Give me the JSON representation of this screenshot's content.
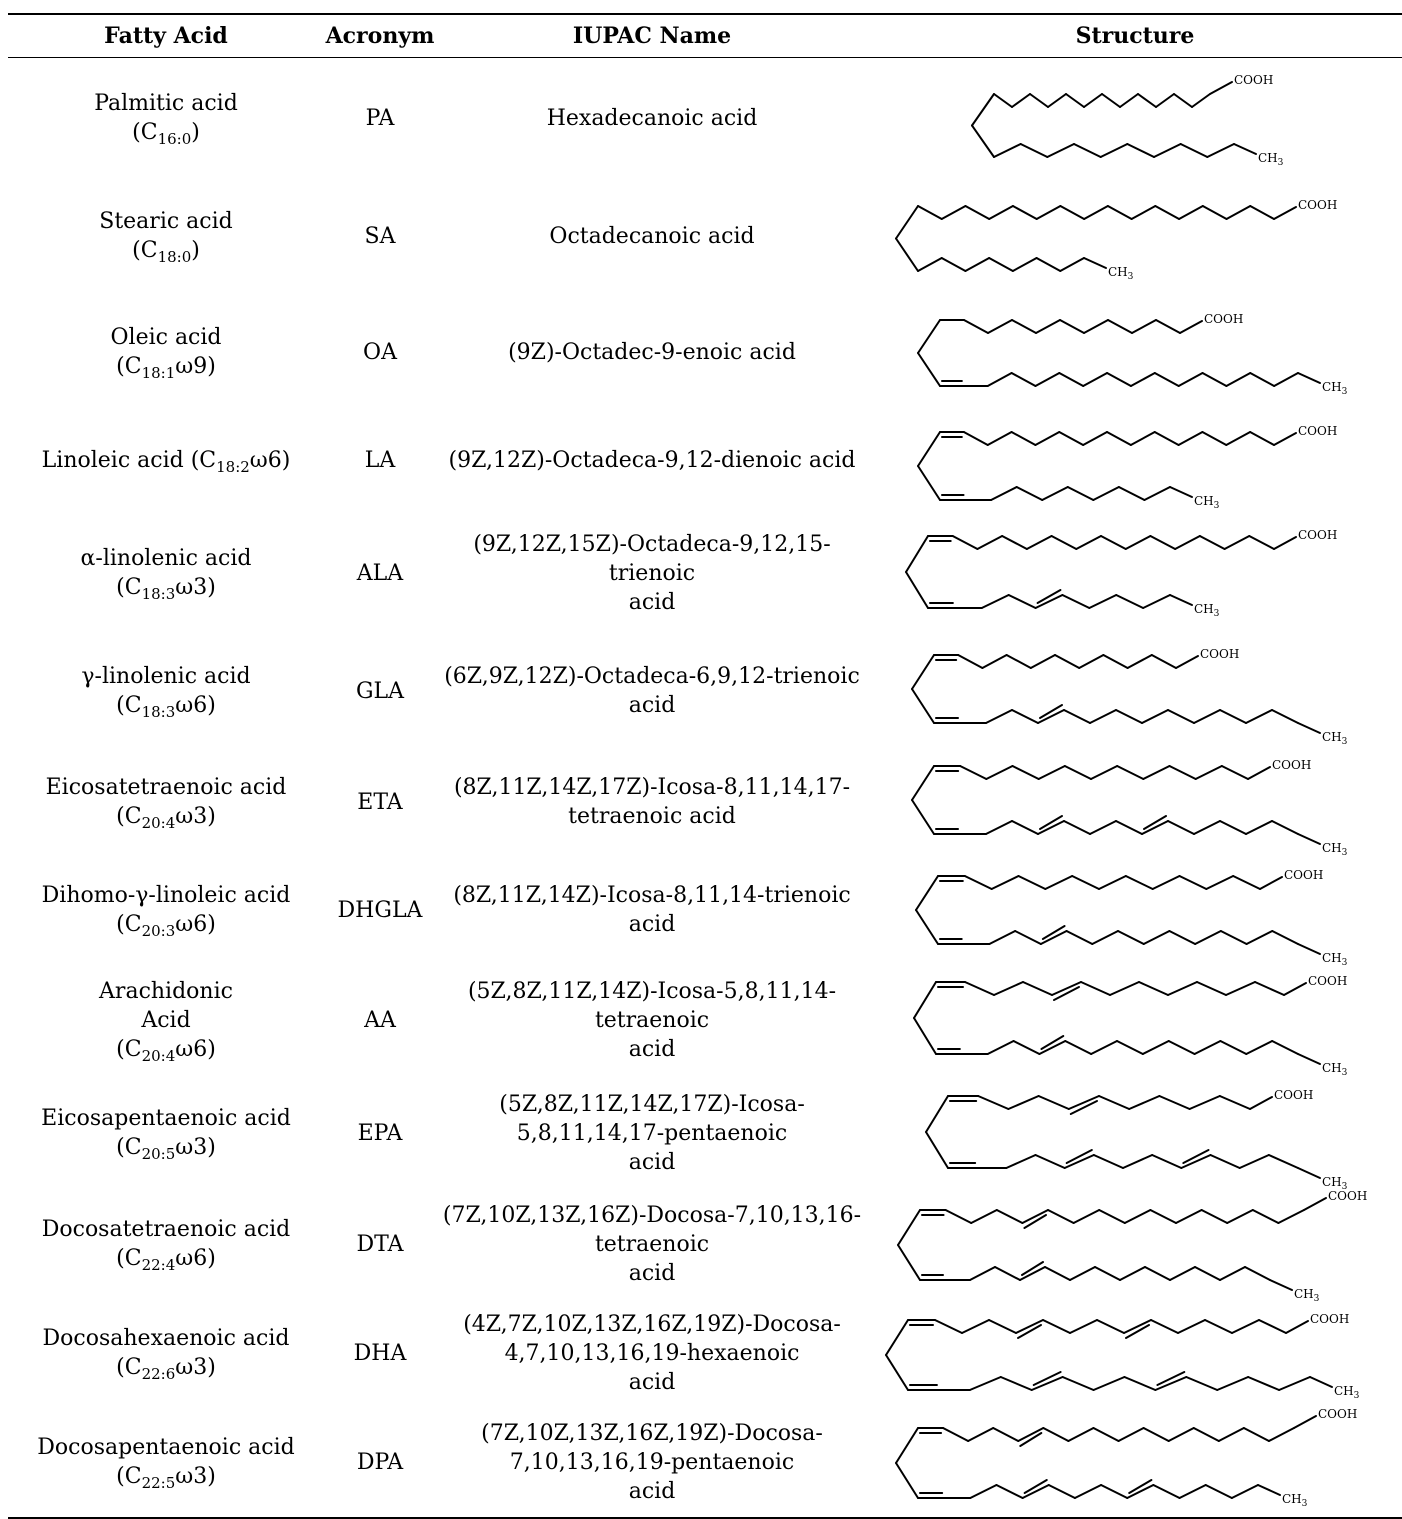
{
  "headers": {
    "fatty_acid": "Fatty Acid",
    "acronym": "Acronym",
    "iupac": "IUPAC Name",
    "structure": "Structure"
  },
  "rows": [
    {
      "name_lines": [
        "Palmitic acid"
      ],
      "formula": {
        "pre": "(C",
        "sub": "16:0",
        "post": ")"
      },
      "inline": false,
      "acronym": "PA",
      "iupac_lines": [
        "Hexadecanoic acid"
      ],
      "structure": {
        "type": "saturated",
        "top": 12,
        "bottom": 9,
        "cooh": "COOH",
        "ch3": "CH3"
      }
    },
    {
      "name_lines": [
        "Stearic acid"
      ],
      "formula": {
        "pre": "(C",
        "sub": "18:0",
        "post": ")"
      },
      "inline": false,
      "acronym": "SA",
      "iupac_lines": [
        "Octadecanoic acid"
      ],
      "structure": {
        "type": "saturated",
        "top": 15,
        "bottom": 7,
        "cooh": "COOH",
        "ch3": "CH3"
      }
    },
    {
      "name_lines": [
        "Oleic acid"
      ],
      "formula": {
        "pre": "(C",
        "sub": "18:1",
        "post": "ω9)"
      },
      "inline": false,
      "acronym": "OA",
      "iupac_lines": [
        "(9Z)-Octadec-9-enoic acid"
      ],
      "structure": {
        "type": "unsaturated",
        "top": 10,
        "bottom": 15,
        "top_doubles": [],
        "bottom_doubles": [
          1
        ],
        "cooh": "COOH",
        "ch3": "CH3"
      }
    },
    {
      "name_lines": [],
      "formula": {
        "pre": "Linoleic acid (C",
        "sub": "18:2",
        "post": "ω6)"
      },
      "inline": true,
      "acronym": "LA",
      "iupac_lines": [
        "(9Z,12Z)-Octadeca-9,12-dienoic acid"
      ],
      "structure": {
        "type": "unsaturated",
        "top": 14,
        "bottom": 9,
        "top_doubles": [
          1
        ],
        "bottom_doubles": [
          1
        ],
        "cooh": "COOH",
        "ch3": "CH3"
      }
    },
    {
      "name_lines": [
        "α-linolenic acid"
      ],
      "formula": {
        "pre": "(C",
        "sub": "18:3",
        "post": "ω3)"
      },
      "inline": false,
      "acronym": "ALA",
      "iupac_lines": [
        "(9Z,12Z,15Z)-Octadeca-9,12,15-",
        "trienoic",
        "acid"
      ],
      "structure": {
        "type": "unsaturated",
        "top": 14,
        "bottom": 9,
        "top_doubles": [
          1
        ],
        "bottom_doubles": [
          1,
          5
        ],
        "cooh": "COOH",
        "ch3": "CH3"
      }
    },
    {
      "name_lines": [
        "γ-linolenic acid"
      ],
      "formula": {
        "pre": "(C",
        "sub": "18:3",
        "post": "ω6)"
      },
      "inline": false,
      "acronym": "GLA",
      "iupac_lines": [
        "(6Z,9Z,12Z)-Octadeca-6,9,12-trienoic",
        "acid"
      ],
      "structure": {
        "type": "unsaturated",
        "top": 10,
        "bottom": 14,
        "top_doubles": [
          1
        ],
        "bottom_doubles": [
          1,
          5
        ],
        "cooh": "COOH",
        "ch3": "CH3"
      }
    },
    {
      "name_lines": [
        "Eicosatetraenoic acid"
      ],
      "formula": {
        "pre": "(C",
        "sub": "20:4",
        "post": "ω3)"
      },
      "inline": false,
      "acronym": "ETA",
      "iupac_lines": [
        "(8Z,11Z,14Z,17Z)-Icosa-8,11,14,17-",
        "tetraenoic acid"
      ],
      "structure": {
        "type": "unsaturated",
        "top": 12,
        "bottom": 14,
        "top_doubles": [
          1
        ],
        "bottom_doubles": [
          1,
          5,
          9
        ],
        "cooh": "COOH",
        "ch3": "CH3"
      }
    },
    {
      "name_lines": [
        "Dihomo-γ-linoleic acid"
      ],
      "formula": {
        "pre": "(C",
        "sub": "20:3",
        "post": "ω6)"
      },
      "inline": false,
      "acronym": "DHGLA",
      "iupac_lines": [
        "(8Z,11Z,14Z)-Icosa-8,11,14-trienoic",
        "acid"
      ],
      "structure": {
        "type": "unsaturated",
        "top": 12,
        "bottom": 14,
        "top_doubles": [
          1
        ],
        "bottom_doubles": [
          1,
          5
        ],
        "cooh": "COOH",
        "ch3": "CH3"
      }
    },
    {
      "name_lines": [
        "Arachidonic",
        "Acid"
      ],
      "formula": {
        "pre": "(C",
        "sub": "20:4",
        "post": "ω6)"
      },
      "inline": false,
      "acronym": "AA",
      "iupac_lines": [
        "(5Z,8Z,11Z,14Z)-Icosa-5,8,11,14-",
        "tetraenoic",
        "acid"
      ],
      "structure": {
        "type": "unsaturated",
        "top": 12,
        "bottom": 14,
        "top_doubles": [
          1,
          5
        ],
        "bottom_doubles": [
          1,
          5
        ],
        "cooh": "COOH",
        "ch3": "CH3"
      }
    },
    {
      "name_lines": [
        "Eicosapentaenoic acid"
      ],
      "formula": {
        "pre": "(C",
        "sub": "20:5",
        "post": "ω3)"
      },
      "inline": false,
      "acronym": "EPA",
      "iupac_lines": [
        "(5Z,8Z,11Z,14Z,17Z)-Icosa-",
        "5,8,11,14,17-pentaenoic",
        "acid"
      ],
      "structure": {
        "type": "unsaturated",
        "top": 10,
        "bottom": 12,
        "top_doubles": [
          1,
          5
        ],
        "bottom_doubles": [
          1,
          5,
          9
        ],
        "cooh": "COOH",
        "ch3": "CH3"
      }
    },
    {
      "name_lines": [
        "Docosatetraenoic acid"
      ],
      "formula": {
        "pre": "(C",
        "sub": "22:4",
        "post": "ω6)"
      },
      "inline": false,
      "acronym": "DTA",
      "iupac_lines": [
        "(7Z,10Z,13Z,16Z)-Docosa-7,10,13,16-",
        "tetraenoic",
        "acid"
      ],
      "structure": {
        "type": "unsaturated",
        "top": 15,
        "bottom": 14,
        "top_doubles": [
          1,
          5
        ],
        "bottom_doubles": [
          1,
          5
        ],
        "cooh": "COOH",
        "ch3": "CH3"
      }
    },
    {
      "name_lines": [
        "Docosahexaenoic acid"
      ],
      "formula": {
        "pre": "(C",
        "sub": "22:6",
        "post": "ω3)"
      },
      "inline": false,
      "acronym": "DHA",
      "iupac_lines": [
        "(4Z,7Z,10Z,13Z,16Z,19Z)-Docosa-",
        "4,7,10,13,16,19-hexaenoic",
        "acid"
      ],
      "structure": {
        "type": "unsaturated",
        "top": 14,
        "bottom": 13,
        "top_doubles": [
          1,
          5,
          9
        ],
        "bottom_doubles": [
          1,
          5,
          9
        ],
        "cooh": "COOH",
        "ch3": "CH3"
      }
    },
    {
      "name_lines": [
        "Docosapentaenoic acid"
      ],
      "formula": {
        "pre": "(C",
        "sub": "22:5",
        "post": "ω3)"
      },
      "inline": false,
      "acronym": "DPA",
      "iupac_lines": [
        "(7Z,10Z,13Z,16Z,19Z)-Docosa-",
        "7,10,13,16,19-pentaenoic",
        "acid"
      ],
      "structure": {
        "type": "unsaturated",
        "top": 15,
        "bottom": 13,
        "top_doubles": [
          1,
          5
        ],
        "bottom_doubles": [
          1,
          5,
          9
        ],
        "cooh": "COOH",
        "ch3": "CH3"
      }
    }
  ]
}
